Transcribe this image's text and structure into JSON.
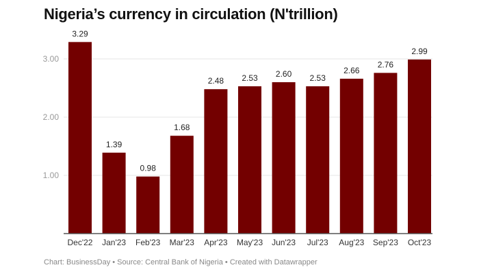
{
  "chart_data": {
    "type": "bar",
    "title": "Nigeria’s currency in circulation (N'trillion)",
    "categories": [
      "Dec'22",
      "Jan'23",
      "Feb'23",
      "Mar'23",
      "Apr'23",
      "May'23",
      "Jun'23",
      "Jul'23",
      "Aug'23",
      "Sep'23",
      "Oct'23"
    ],
    "values": [
      3.29,
      1.39,
      0.98,
      1.68,
      2.48,
      2.53,
      2.6,
      2.53,
      2.66,
      2.76,
      2.99
    ],
    "value_labels": [
      "3.29",
      "1.39",
      "0.98",
      "1.68",
      "2.48",
      "2.53",
      "2.60",
      "2.53",
      "2.66",
      "2.76",
      "2.99"
    ],
    "yticks": [
      1,
      2,
      3
    ],
    "ytick_labels": [
      "1.00",
      "2.00",
      "3.00"
    ],
    "ylim": [
      0,
      3.3
    ],
    "grid": true,
    "bar_color": "#730000",
    "xlabel": "",
    "ylabel": ""
  },
  "footer": "Chart: BusinessDay  • Source: Central Bank of Nigeria • Created with Datawrapper"
}
